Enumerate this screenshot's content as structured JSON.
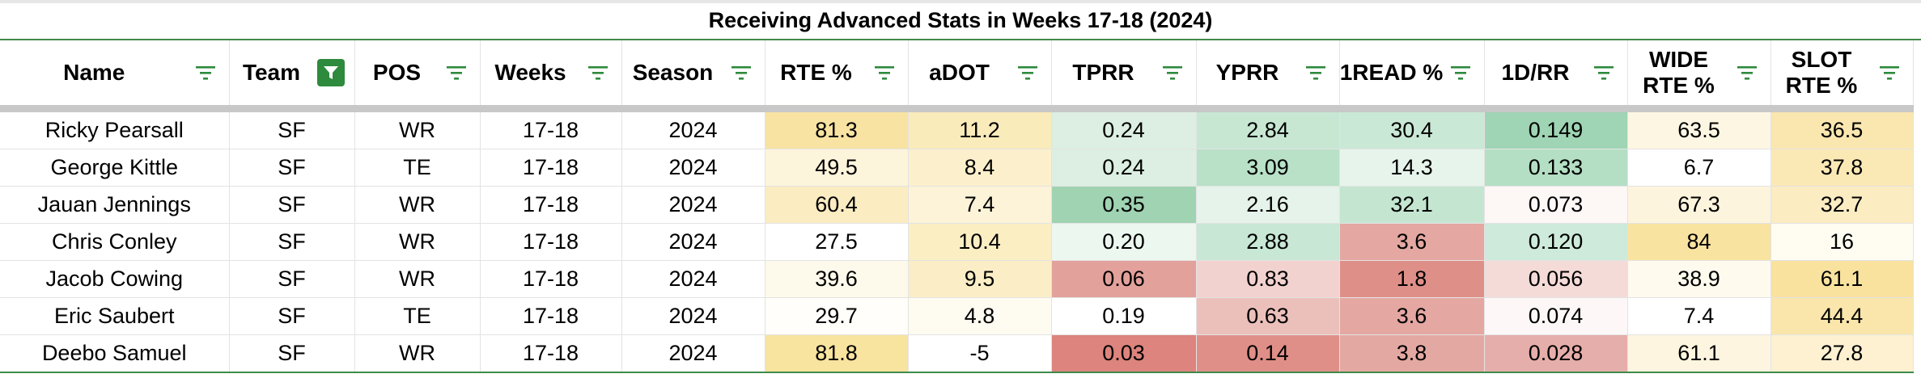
{
  "title": "Receiving Advanced Stats in Weeks 17-18 (2024)",
  "columns": [
    {
      "key": "name",
      "label": "Name",
      "filter_active": false
    },
    {
      "key": "team",
      "label": "Team",
      "filter_active": true
    },
    {
      "key": "pos",
      "label": "POS",
      "filter_active": false
    },
    {
      "key": "weeks",
      "label": "Weeks",
      "filter_active": false
    },
    {
      "key": "season",
      "label": "Season",
      "filter_active": false
    },
    {
      "key": "rte",
      "label": "RTE %",
      "filter_active": false
    },
    {
      "key": "adot",
      "label": "aDOT",
      "filter_active": false
    },
    {
      "key": "tprr",
      "label": "TPRR",
      "filter_active": false
    },
    {
      "key": "yprr",
      "label": "YPRR",
      "filter_active": false
    },
    {
      "key": "oneread",
      "label": "1READ %",
      "filter_active": false
    },
    {
      "key": "d1rr",
      "label": "1D/RR",
      "filter_active": false
    },
    {
      "key": "wide",
      "label": "WIDE RTE %",
      "filter_active": false
    },
    {
      "key": "slot",
      "label": "SLOT RTE %",
      "filter_active": false
    }
  ],
  "rows": [
    {
      "name": "Ricky Pearsall",
      "team": "SF",
      "pos": "WR",
      "weeks": "17-18",
      "season": "2024",
      "rte": "81.3",
      "adot": "11.2",
      "tprr": "0.24",
      "yprr": "2.84",
      "oneread": "30.4",
      "d1rr": "0.149",
      "wide": "63.5",
      "slot": "36.5"
    },
    {
      "name": "George Kittle",
      "team": "SF",
      "pos": "TE",
      "weeks": "17-18",
      "season": "2024",
      "rte": "49.5",
      "adot": "8.4",
      "tprr": "0.24",
      "yprr": "3.09",
      "oneread": "14.3",
      "d1rr": "0.133",
      "wide": "6.7",
      "slot": "37.8"
    },
    {
      "name": "Jauan Jennings",
      "team": "SF",
      "pos": "WR",
      "weeks": "17-18",
      "season": "2024",
      "rte": "60.4",
      "adot": "7.4",
      "tprr": "0.35",
      "yprr": "2.16",
      "oneread": "32.1",
      "d1rr": "0.073",
      "wide": "67.3",
      "slot": "32.7"
    },
    {
      "name": "Chris Conley",
      "team": "SF",
      "pos": "WR",
      "weeks": "17-18",
      "season": "2024",
      "rte": "27.5",
      "adot": "10.4",
      "tprr": "0.20",
      "yprr": "2.88",
      "oneread": "3.6",
      "d1rr": "0.120",
      "wide": "84",
      "slot": "16"
    },
    {
      "name": "Jacob Cowing",
      "team": "SF",
      "pos": "WR",
      "weeks": "17-18",
      "season": "2024",
      "rte": "39.6",
      "adot": "9.5",
      "tprr": "0.06",
      "yprr": "0.83",
      "oneread": "1.8",
      "d1rr": "0.056",
      "wide": "38.9",
      "slot": "61.1"
    },
    {
      "name": "Eric Saubert",
      "team": "SF",
      "pos": "TE",
      "weeks": "17-18",
      "season": "2024",
      "rte": "29.7",
      "adot": "4.8",
      "tprr": "0.19",
      "yprr": "0.63",
      "oneread": "3.6",
      "d1rr": "0.074",
      "wide": "7.4",
      "slot": "44.4"
    },
    {
      "name": "Deebo Samuel",
      "team": "SF",
      "pos": "WR",
      "weeks": "17-18",
      "season": "2024",
      "rte": "81.8",
      "adot": "-5",
      "tprr": "0.03",
      "yprr": "0.14",
      "oneread": "3.8",
      "d1rr": "0.028",
      "wide": "61.1",
      "slot": "27.8"
    }
  ],
  "cell_colors": [
    {
      "rte": "#f8e3a3",
      "adot": "#faebbb",
      "tprr": "#dcefe2",
      "yprr": "#c7e7d3",
      "oneread": "#c9e8d5",
      "d1rr": "#9fd4b4",
      "wide": "#fdf6e2",
      "slot": "#fae7b0"
    },
    {
      "rte": "#fdf4dc",
      "adot": "#fcf0cc",
      "tprr": "#dcefe2",
      "yprr": "#b8e1c8",
      "oneread": "#e6f4eb",
      "d1rr": "#b4dfc4",
      "wide": "#ffffff",
      "slot": "#fbe9b5"
    },
    {
      "rte": "#fbecc2",
      "adot": "#fdf3d8",
      "tprr": "#9fd3b2",
      "yprr": "#e5f3ea",
      "oneread": "#c4e6d1",
      "d1rr": "#fdf7f6",
      "wide": "#fdf4dd",
      "slot": "#fcecc2"
    },
    {
      "rte": "#ffffff",
      "adot": "#fbeec3",
      "tprr": "#ecf7f0",
      "yprr": "#c8e7d4",
      "oneread": "#e4a7a1",
      "d1rr": "#cdeada",
      "wide": "#f9e3a0",
      "slot": "#fffcf2"
    },
    {
      "rte": "#fefaeb",
      "adot": "#fbeec6",
      "tprr": "#e3a19b",
      "yprr": "#f2d2cf",
      "oneread": "#de8f88",
      "d1rr": "#f4dbd8",
      "wide": "#fefaee",
      "slot": "#f8e29e"
    },
    {
      "rte": "#fffefa",
      "adot": "#fefbf0",
      "tprr": "#ffffff",
      "yprr": "#ebc0bb",
      "oneread": "#e4a7a1",
      "d1rr": "#fdf8f7",
      "wide": "#ffffff",
      "slot": "#fae6ab"
    },
    {
      "rte": "#f8e39f",
      "adot": "#ffffff",
      "tprr": "#dc847d",
      "yprr": "#df8f88",
      "oneread": "#e4a8a2",
      "d1rr": "#e6aeaa",
      "wide": "#fdf5df",
      "slot": "#fdf1d2"
    }
  ]
}
